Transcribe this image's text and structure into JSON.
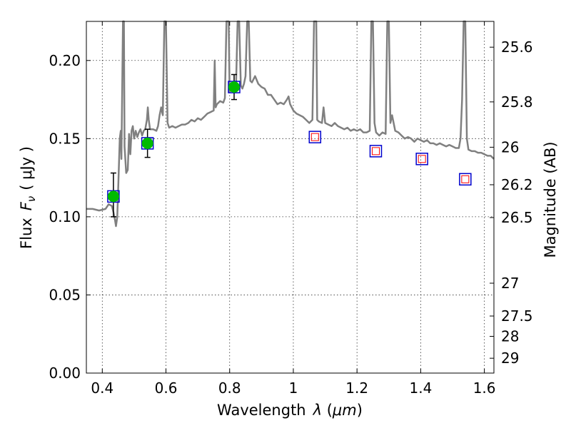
{
  "chart_data": {
    "type": "scatter",
    "xlabel": "Wavelength",
    "xlabel_symbol": "λ",
    "xlabel_unit": "μm",
    "ylabel": "Flux",
    "ylabel_symbol": "F",
    "ylabel_sub": "ν",
    "ylabel_unit": "μJy",
    "ylabel_right": "Magnitude (AB)",
    "xlim": [
      0.35,
      1.63
    ],
    "ylim": [
      0.0,
      0.225
    ],
    "grid": true,
    "x_ticks": [
      {
        "value": 0.4,
        "label": "0.4"
      },
      {
        "value": 0.6,
        "label": "0.6"
      },
      {
        "value": 0.8,
        "label": "0.8"
      },
      {
        "value": 1.0,
        "label": "1"
      },
      {
        "value": 1.2,
        "label": "1.2"
      },
      {
        "value": 1.4,
        "label": "1.4"
      },
      {
        "value": 1.6,
        "label": "1.6"
      }
    ],
    "y_ticks": [
      {
        "value": 0.0,
        "label": "0.00"
      },
      {
        "value": 0.05,
        "label": "0.05"
      },
      {
        "value": 0.1,
        "label": "0.10"
      },
      {
        "value": 0.15,
        "label": "0.15"
      },
      {
        "value": 0.2,
        "label": "0.20"
      }
    ],
    "right_ticks": [
      {
        "flux": 0.2085,
        "label": "25.6"
      },
      {
        "flux": 0.1735,
        "label": "25.8"
      },
      {
        "flux": 0.1445,
        "label": "26"
      },
      {
        "flux": 0.1205,
        "label": "26.2"
      },
      {
        "flux": 0.0995,
        "label": "26.5"
      },
      {
        "flux": 0.0575,
        "label": "27"
      },
      {
        "flux": 0.0365,
        "label": "27.5"
      },
      {
        "flux": 0.0235,
        "label": "28"
      },
      {
        "flux": 0.0095,
        "label": "29"
      }
    ],
    "spectrum": {
      "color": "#808080",
      "points": [
        [
          0.35,
          0.105
        ],
        [
          0.37,
          0.105
        ],
        [
          0.39,
          0.104
        ],
        [
          0.41,
          0.105
        ],
        [
          0.42,
          0.108
        ],
        [
          0.43,
          0.107
        ],
        [
          0.435,
          0.103
        ],
        [
          0.44,
          0.098
        ],
        [
          0.443,
          0.094
        ],
        [
          0.447,
          0.1
        ],
        [
          0.45,
          0.118
        ],
        [
          0.455,
          0.15
        ],
        [
          0.458,
          0.155
        ],
        [
          0.46,
          0.137
        ],
        [
          0.465,
          0.225
        ],
        [
          0.468,
          0.225
        ],
        [
          0.47,
          0.145
        ],
        [
          0.475,
          0.128
        ],
        [
          0.48,
          0.13
        ],
        [
          0.484,
          0.153
        ],
        [
          0.488,
          0.14
        ],
        [
          0.492,
          0.155
        ],
        [
          0.496,
          0.158
        ],
        [
          0.5,
          0.15
        ],
        [
          0.505,
          0.155
        ],
        [
          0.51,
          0.151
        ],
        [
          0.515,
          0.154
        ],
        [
          0.52,
          0.156
        ],
        [
          0.525,
          0.152
        ],
        [
          0.53,
          0.155
        ],
        [
          0.535,
          0.156
        ],
        [
          0.54,
          0.162
        ],
        [
          0.543,
          0.17
        ],
        [
          0.546,
          0.162
        ],
        [
          0.55,
          0.156
        ],
        [
          0.56,
          0.156
        ],
        [
          0.57,
          0.155
        ],
        [
          0.575,
          0.158
        ],
        [
          0.58,
          0.165
        ],
        [
          0.585,
          0.17
        ],
        [
          0.59,
          0.165
        ],
        [
          0.595,
          0.225
        ],
        [
          0.6,
          0.225
        ],
        [
          0.605,
          0.16
        ],
        [
          0.61,
          0.157
        ],
        [
          0.62,
          0.158
        ],
        [
          0.63,
          0.157
        ],
        [
          0.64,
          0.158
        ],
        [
          0.65,
          0.159
        ],
        [
          0.66,
          0.159
        ],
        [
          0.67,
          0.16
        ],
        [
          0.68,
          0.162
        ],
        [
          0.69,
          0.161
        ],
        [
          0.7,
          0.163
        ],
        [
          0.71,
          0.162
        ],
        [
          0.72,
          0.164
        ],
        [
          0.73,
          0.166
        ],
        [
          0.74,
          0.167
        ],
        [
          0.75,
          0.168
        ],
        [
          0.753,
          0.2
        ],
        [
          0.756,
          0.17
        ],
        [
          0.76,
          0.172
        ],
        [
          0.77,
          0.174
        ],
        [
          0.78,
          0.173
        ],
        [
          0.785,
          0.176
        ],
        [
          0.79,
          0.225
        ],
        [
          0.797,
          0.225
        ],
        [
          0.8,
          0.18
        ],
        [
          0.81,
          0.182
        ],
        [
          0.815,
          0.183
        ],
        [
          0.82,
          0.184
        ],
        [
          0.825,
          0.225
        ],
        [
          0.83,
          0.225
        ],
        [
          0.835,
          0.184
        ],
        [
          0.84,
          0.182
        ],
        [
          0.845,
          0.185
        ],
        [
          0.85,
          0.19
        ],
        [
          0.855,
          0.225
        ],
        [
          0.86,
          0.225
        ],
        [
          0.865,
          0.187
        ],
        [
          0.87,
          0.186
        ],
        [
          0.88,
          0.19
        ],
        [
          0.89,
          0.185
        ],
        [
          0.9,
          0.183
        ],
        [
          0.91,
          0.182
        ],
        [
          0.92,
          0.178
        ],
        [
          0.93,
          0.178
        ],
        [
          0.94,
          0.175
        ],
        [
          0.95,
          0.172
        ],
        [
          0.96,
          0.173
        ],
        [
          0.97,
          0.172
        ],
        [
          0.98,
          0.175
        ],
        [
          0.985,
          0.177
        ],
        [
          0.99,
          0.172
        ],
        [
          1.0,
          0.168
        ],
        [
          1.01,
          0.166
        ],
        [
          1.02,
          0.165
        ],
        [
          1.03,
          0.164
        ],
        [
          1.04,
          0.162
        ],
        [
          1.05,
          0.16
        ],
        [
          1.06,
          0.162
        ],
        [
          1.065,
          0.225
        ],
        [
          1.072,
          0.225
        ],
        [
          1.075,
          0.162
        ],
        [
          1.08,
          0.161
        ],
        [
          1.09,
          0.16
        ],
        [
          1.095,
          0.17
        ],
        [
          1.1,
          0.16
        ],
        [
          1.11,
          0.159
        ],
        [
          1.12,
          0.158
        ],
        [
          1.13,
          0.16
        ],
        [
          1.14,
          0.158
        ],
        [
          1.15,
          0.157
        ],
        [
          1.16,
          0.156
        ],
        [
          1.17,
          0.157
        ],
        [
          1.18,
          0.155
        ],
        [
          1.19,
          0.156
        ],
        [
          1.2,
          0.155
        ],
        [
          1.21,
          0.156
        ],
        [
          1.22,
          0.154
        ],
        [
          1.23,
          0.154
        ],
        [
          1.24,
          0.155
        ],
        [
          1.245,
          0.225
        ],
        [
          1.25,
          0.225
        ],
        [
          1.255,
          0.16
        ],
        [
          1.26,
          0.154
        ],
        [
          1.27,
          0.152
        ],
        [
          1.28,
          0.154
        ],
        [
          1.29,
          0.153
        ],
        [
          1.295,
          0.225
        ],
        [
          1.3,
          0.225
        ],
        [
          1.305,
          0.16
        ],
        [
          1.31,
          0.165
        ],
        [
          1.315,
          0.16
        ],
        [
          1.32,
          0.155
        ],
        [
          1.33,
          0.154
        ],
        [
          1.34,
          0.152
        ],
        [
          1.35,
          0.15
        ],
        [
          1.36,
          0.151
        ],
        [
          1.37,
          0.15
        ],
        [
          1.38,
          0.148
        ],
        [
          1.39,
          0.15
        ],
        [
          1.4,
          0.149
        ],
        [
          1.41,
          0.148
        ],
        [
          1.42,
          0.149
        ],
        [
          1.43,
          0.147
        ],
        [
          1.44,
          0.147
        ],
        [
          1.45,
          0.146
        ],
        [
          1.46,
          0.147
        ],
        [
          1.47,
          0.146
        ],
        [
          1.48,
          0.145
        ],
        [
          1.49,
          0.146
        ],
        [
          1.5,
          0.145
        ],
        [
          1.51,
          0.144
        ],
        [
          1.52,
          0.144
        ],
        [
          1.525,
          0.15
        ],
        [
          1.53,
          0.175
        ],
        [
          1.535,
          0.225
        ],
        [
          1.54,
          0.225
        ],
        [
          1.545,
          0.15
        ],
        [
          1.55,
          0.143
        ],
        [
          1.56,
          0.142
        ],
        [
          1.57,
          0.142
        ],
        [
          1.58,
          0.141
        ],
        [
          1.59,
          0.141
        ],
        [
          1.6,
          0.14
        ],
        [
          1.61,
          0.139
        ],
        [
          1.62,
          0.139
        ],
        [
          1.63,
          0.137
        ]
      ]
    },
    "observed": {
      "color": "#00bb00",
      "box_color": "#0000cc",
      "err_color": "#000000",
      "points": [
        {
          "x": 0.435,
          "y": 0.113,
          "yerr_low": 0.1,
          "yerr_high": 0.128
        },
        {
          "x": 0.542,
          "y": 0.147,
          "yerr_low": 0.138,
          "yerr_high": 0.156
        },
        {
          "x": 0.814,
          "y": 0.183,
          "yerr_low": 0.175,
          "yerr_high": 0.191
        }
      ]
    },
    "model": {
      "box_color": "#0000cc",
      "inner_color": "#ff0000",
      "points": [
        {
          "x": 1.068,
          "y": 0.151
        },
        {
          "x": 1.259,
          "y": 0.142
        },
        {
          "x": 1.404,
          "y": 0.137
        },
        {
          "x": 1.54,
          "y": 0.124
        }
      ]
    }
  }
}
